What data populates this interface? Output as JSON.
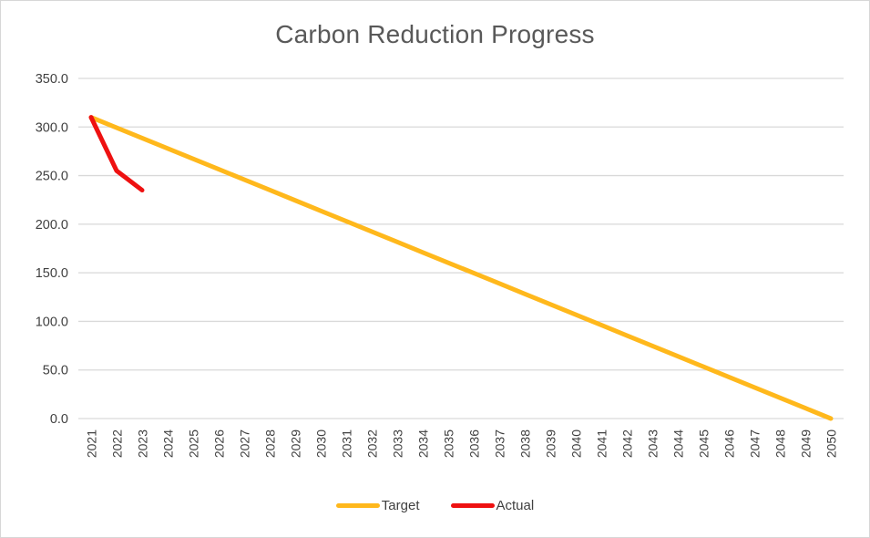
{
  "chart_data": {
    "type": "line",
    "title": "Carbon Reduction Progress",
    "categories": [
      "2021",
      "2022",
      "2023",
      "2024",
      "2025",
      "2026",
      "2027",
      "2028",
      "2029",
      "2030",
      "2031",
      "2032",
      "2033",
      "2034",
      "2035",
      "2036",
      "2037",
      "2038",
      "2039",
      "2040",
      "2041",
      "2042",
      "2043",
      "2044",
      "2045",
      "2046",
      "2047",
      "2048",
      "2049",
      "2050"
    ],
    "series": [
      {
        "name": "Target",
        "color": "#FFB81C",
        "values": [
          310,
          299.3,
          288.6,
          277.9,
          267.2,
          256.6,
          245.9,
          235.2,
          224.5,
          213.8,
          203.1,
          192.4,
          181.7,
          171.0,
          160.3,
          149.7,
          139.0,
          128.3,
          117.6,
          106.9,
          96.2,
          85.5,
          74.8,
          64.1,
          53.4,
          42.8,
          32.1,
          21.4,
          10.7,
          0.0
        ]
      },
      {
        "name": "Actual",
        "color": "#EE1111",
        "values": [
          310,
          255,
          235
        ]
      }
    ],
    "ylim": [
      0,
      350
    ],
    "ytick_step": 50,
    "ytick_labels": [
      "0.0",
      "50.0",
      "100.0",
      "150.0",
      "200.0",
      "250.0",
      "300.0",
      "350.0"
    ],
    "grid": true,
    "legend_position": "bottom",
    "colors": {
      "title_text": "#595959",
      "axis_text": "#404040",
      "gridline": "#d9d9d9"
    }
  }
}
